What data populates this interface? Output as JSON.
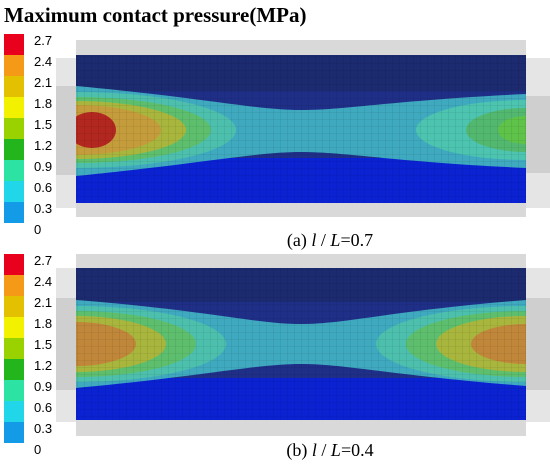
{
  "title": "Maximum contact pressure(MPa)",
  "legend": {
    "ticks": [
      "2.7",
      "2.4",
      "2.1",
      "1.8",
      "1.5",
      "1.2",
      "0.9",
      "0.6",
      "0.3",
      "0"
    ],
    "colors": [
      "#e8001c",
      "#f59a17",
      "#e3c000",
      "#f2f200",
      "#9ad200",
      "#22b61c",
      "#2ce3a4",
      "#21d6e9",
      "#139be8",
      "#0a2fd6"
    ]
  },
  "panels": [
    {
      "id": "a",
      "caption_prefix": "(a) ",
      "caption_l": "l",
      "caption_sep": " / ",
      "caption_L": "L",
      "caption_value": "=0.7"
    },
    {
      "id": "b",
      "caption_prefix": "(b) ",
      "caption_l": "l",
      "caption_sep": " / ",
      "caption_L": "L",
      "caption_value": "=0.4"
    }
  ]
}
